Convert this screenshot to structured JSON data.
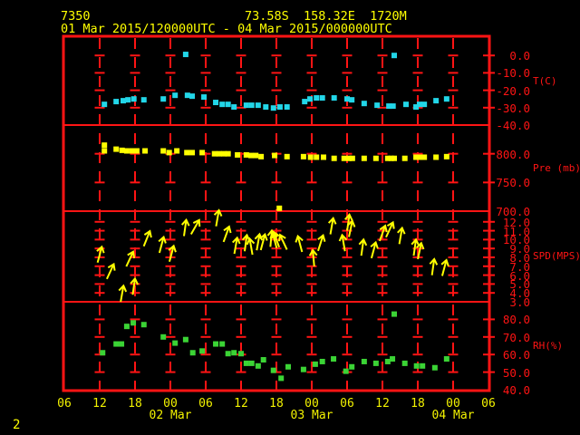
{
  "colors": {
    "background": "#000000",
    "grid_red": "#ff1414",
    "header_yellow": "#ffff00",
    "temperature_cyan": "#22d6e8",
    "pressure_yellow": "#ffff00",
    "wind_yellow": "#ffff00",
    "humidity_green": "#3bd435"
  },
  "header": {
    "station_id": "7350",
    "location": "73.58S  158.32E  1720M",
    "time_range": "01 Mar 2015/120000UTC - 04 Mar 2015/000000UTC"
  },
  "footer": {
    "page_number": "2"
  },
  "chart_data": {
    "type": "scatter",
    "title": "01 Mar 2015/120000UTC - 04 Mar 2015/000000UTC",
    "station": "7350",
    "x_axis": {
      "unit": "hours since 01 Mar 2015 06UTC",
      "total_hours": 72,
      "tick_interval_hours": 6,
      "hour_tick_labels": [
        "06",
        "12",
        "18",
        "00",
        "06",
        "12",
        "18",
        "00",
        "06",
        "12",
        "18",
        "00",
        "06"
      ],
      "day_labels": [
        {
          "label": "02 Mar",
          "tick_index": 3
        },
        {
          "label": "03 Mar",
          "tick_index": 7
        },
        {
          "label": "04 Mar",
          "tick_index": 11
        }
      ]
    },
    "panels": [
      {
        "id": "temperature",
        "axis_label": "T(C)",
        "color": "#22d6e8",
        "value_top": 10,
        "value_bottom": -40,
        "ticks": [
          {
            "v": 0,
            "label": "0.0"
          },
          {
            "v": -10,
            "label": "-10.0"
          },
          {
            "v": -20,
            "label": "-20.0"
          },
          {
            "v": -30,
            "label": "-30.0"
          },
          {
            "v": -40,
            "label": "-40.0"
          }
        ],
        "points": [
          [
            6.8,
            -28.1
          ],
          [
            8.8,
            -26.5
          ],
          [
            10.0,
            -26.0
          ],
          [
            10.8,
            -25.5
          ],
          [
            11.8,
            -25.0
          ],
          [
            13.5,
            -25.5
          ],
          [
            16.8,
            -25.0
          ],
          [
            18.8,
            -22.9
          ],
          [
            20.6,
            0.6
          ],
          [
            20.9,
            -22.9
          ],
          [
            21.7,
            -23.4
          ],
          [
            23.7,
            -23.9
          ],
          [
            25.7,
            -27.0
          ],
          [
            26.8,
            -28.1
          ],
          [
            27.8,
            -28.1
          ],
          [
            28.8,
            -29.6
          ],
          [
            30.9,
            -28.6
          ],
          [
            31.8,
            -28.6
          ],
          [
            32.9,
            -28.6
          ],
          [
            34.2,
            -29.6
          ],
          [
            35.5,
            -30.2
          ],
          [
            36.6,
            -29.6
          ],
          [
            37.8,
            -29.6
          ],
          [
            40.8,
            -26.5
          ],
          [
            41.7,
            -25.0
          ],
          [
            42.8,
            -24.4
          ],
          [
            43.8,
            -24.4
          ],
          [
            45.8,
            -24.4
          ],
          [
            48.0,
            -25.0
          ],
          [
            48.8,
            -25.5
          ],
          [
            50.9,
            -27.6
          ],
          [
            53.1,
            -28.6
          ],
          [
            55.1,
            -29.1
          ],
          [
            55.8,
            -29.1
          ],
          [
            56.0,
            0.0
          ],
          [
            58.0,
            -28.1
          ],
          [
            59.7,
            -29.6
          ],
          [
            60.3,
            -28.1
          ],
          [
            61.1,
            -28.1
          ],
          [
            63.1,
            -26.0
          ],
          [
            64.9,
            -25.0
          ]
        ]
      },
      {
        "id": "pressure",
        "axis_label": "Pre (mb)",
        "color": "#ffff00",
        "value_top": 850,
        "value_bottom": 700,
        "ticks": [
          {
            "v": 800,
            "label": "800.0"
          },
          {
            "v": 750,
            "label": "750.0"
          },
          {
            "v": 700,
            "label": "700.0"
          }
        ],
        "points": [
          [
            6.8,
            815
          ],
          [
            6.8,
            805
          ],
          [
            8.8,
            808
          ],
          [
            9.8,
            806
          ],
          [
            10.6,
            805
          ],
          [
            11.5,
            805
          ],
          [
            12.3,
            805
          ],
          [
            13.7,
            805
          ],
          [
            16.8,
            805
          ],
          [
            17.8,
            802
          ],
          [
            19.1,
            805
          ],
          [
            20.8,
            802
          ],
          [
            21.7,
            802
          ],
          [
            23.4,
            802
          ],
          [
            25.5,
            800
          ],
          [
            26.3,
            800
          ],
          [
            27.1,
            800
          ],
          [
            27.8,
            800
          ],
          [
            29.4,
            798
          ],
          [
            30.9,
            798
          ],
          [
            31.7,
            797
          ],
          [
            32.5,
            797
          ],
          [
            33.4,
            795
          ],
          [
            35.7,
            797
          ],
          [
            36.5,
            705
          ],
          [
            37.8,
            795
          ],
          [
            40.6,
            795
          ],
          [
            41.8,
            794
          ],
          [
            42.8,
            794
          ],
          [
            44.0,
            794
          ],
          [
            45.8,
            792
          ],
          [
            47.5,
            792
          ],
          [
            48.3,
            792
          ],
          [
            48.9,
            792
          ],
          [
            50.9,
            792
          ],
          [
            52.9,
            792
          ],
          [
            54.9,
            792
          ],
          [
            55.5,
            792
          ],
          [
            56.0,
            792
          ],
          [
            57.8,
            792
          ],
          [
            59.7,
            794
          ],
          [
            60.3,
            794
          ],
          [
            61.1,
            794
          ],
          [
            63.1,
            794
          ],
          [
            64.9,
            795
          ]
        ]
      },
      {
        "id": "wind_speed",
        "axis_label": "SPD(MPS)",
        "color": "#ffff00",
        "value_top": 13.2,
        "value_bottom": 3,
        "ticks": [
          {
            "v": 12,
            "label": "12.0"
          },
          {
            "v": 11,
            "label": "11.0"
          },
          {
            "v": 10,
            "label": "10.0"
          },
          {
            "v": 9,
            "label": "9.0"
          },
          {
            "v": 8,
            "label": "8.0"
          },
          {
            "v": 7,
            "label": "7.0"
          },
          {
            "v": 6,
            "label": "6.0"
          },
          {
            "v": 5,
            "label": "5.0"
          },
          {
            "v": 4,
            "label": "4.0"
          },
          {
            "v": 3,
            "label": "3.0"
          }
        ],
        "arrows_format": "[hours, speed_mps, lean_deg_clockwise_from_up]",
        "arrows": [
          [
            6.0,
            8.3,
            15
          ],
          [
            7.8,
            6.4,
            25
          ],
          [
            9.8,
            3.9,
            10
          ],
          [
            11.1,
            7.8,
            25
          ],
          [
            11.8,
            4.7,
            8
          ],
          [
            14.0,
            10.1,
            22
          ],
          [
            16.5,
            9.4,
            15
          ],
          [
            18.2,
            8.4,
            15
          ],
          [
            20.5,
            11.3,
            8
          ],
          [
            22.2,
            11.4,
            30
          ],
          [
            26.0,
            12.4,
            10
          ],
          [
            27.5,
            10.6,
            20
          ],
          [
            29.1,
            9.3,
            10
          ],
          [
            30.8,
            9.6,
            8
          ],
          [
            31.7,
            9.2,
            -10
          ],
          [
            32.9,
            9.7,
            10
          ],
          [
            33.7,
            9.7,
            15
          ],
          [
            35.1,
            10.1,
            5
          ],
          [
            35.7,
            9.9,
            -15
          ],
          [
            36.0,
            10.0,
            -20
          ],
          [
            37.2,
            9.7,
            -25
          ],
          [
            40.0,
            9.5,
            -15
          ],
          [
            42.3,
            7.9,
            -5
          ],
          [
            43.5,
            9.6,
            18
          ],
          [
            45.4,
            11.5,
            10
          ],
          [
            47.4,
            9.6,
            -10
          ],
          [
            48.2,
            11.9,
            8
          ],
          [
            48.6,
            11.2,
            12
          ],
          [
            50.6,
            9.1,
            8
          ],
          [
            52.5,
            8.8,
            15
          ],
          [
            54.0,
            10.7,
            20
          ],
          [
            55.2,
            11.1,
            25
          ],
          [
            57.1,
            10.4,
            10
          ],
          [
            59.5,
            9.1,
            8
          ],
          [
            60.3,
            8.7,
            12
          ],
          [
            62.6,
            6.9,
            8
          ],
          [
            64.5,
            6.8,
            15
          ]
        ]
      },
      {
        "id": "humidity",
        "axis_label": "RH(%)",
        "color": "#3bd435",
        "value_top": 90,
        "value_bottom": 40,
        "ticks": [
          {
            "v": 80,
            "label": "80.0"
          },
          {
            "v": 70,
            "label": "70.0"
          },
          {
            "v": 60,
            "label": "60.0"
          },
          {
            "v": 50,
            "label": "50.0"
          },
          {
            "v": 40,
            "label": "40.0"
          }
        ],
        "points": [
          [
            6.5,
            61
          ],
          [
            8.8,
            66
          ],
          [
            9.7,
            66
          ],
          [
            10.6,
            76
          ],
          [
            11.7,
            78
          ],
          [
            13.5,
            77
          ],
          [
            16.8,
            70
          ],
          [
            18.8,
            66.5
          ],
          [
            20.6,
            68.5
          ],
          [
            21.8,
            61
          ],
          [
            23.4,
            62
          ],
          [
            25.7,
            66
          ],
          [
            26.8,
            66
          ],
          [
            27.8,
            60.5
          ],
          [
            28.8,
            61
          ],
          [
            30.0,
            60.5
          ],
          [
            30.9,
            55
          ],
          [
            31.8,
            55
          ],
          [
            32.9,
            53.5
          ],
          [
            33.8,
            57
          ],
          [
            35.5,
            51
          ],
          [
            36.8,
            46.5
          ],
          [
            38.0,
            53
          ],
          [
            40.6,
            51.5
          ],
          [
            42.6,
            54.5
          ],
          [
            43.8,
            56
          ],
          [
            45.7,
            57.5
          ],
          [
            47.8,
            50.5
          ],
          [
            48.8,
            53
          ],
          [
            50.9,
            56
          ],
          [
            52.9,
            55
          ],
          [
            54.9,
            56
          ],
          [
            55.7,
            57.5
          ],
          [
            56.0,
            83
          ],
          [
            57.8,
            55
          ],
          [
            59.8,
            53.5
          ],
          [
            60.8,
            53.5
          ],
          [
            62.9,
            52.5
          ],
          [
            64.9,
            57.5
          ]
        ]
      }
    ]
  }
}
